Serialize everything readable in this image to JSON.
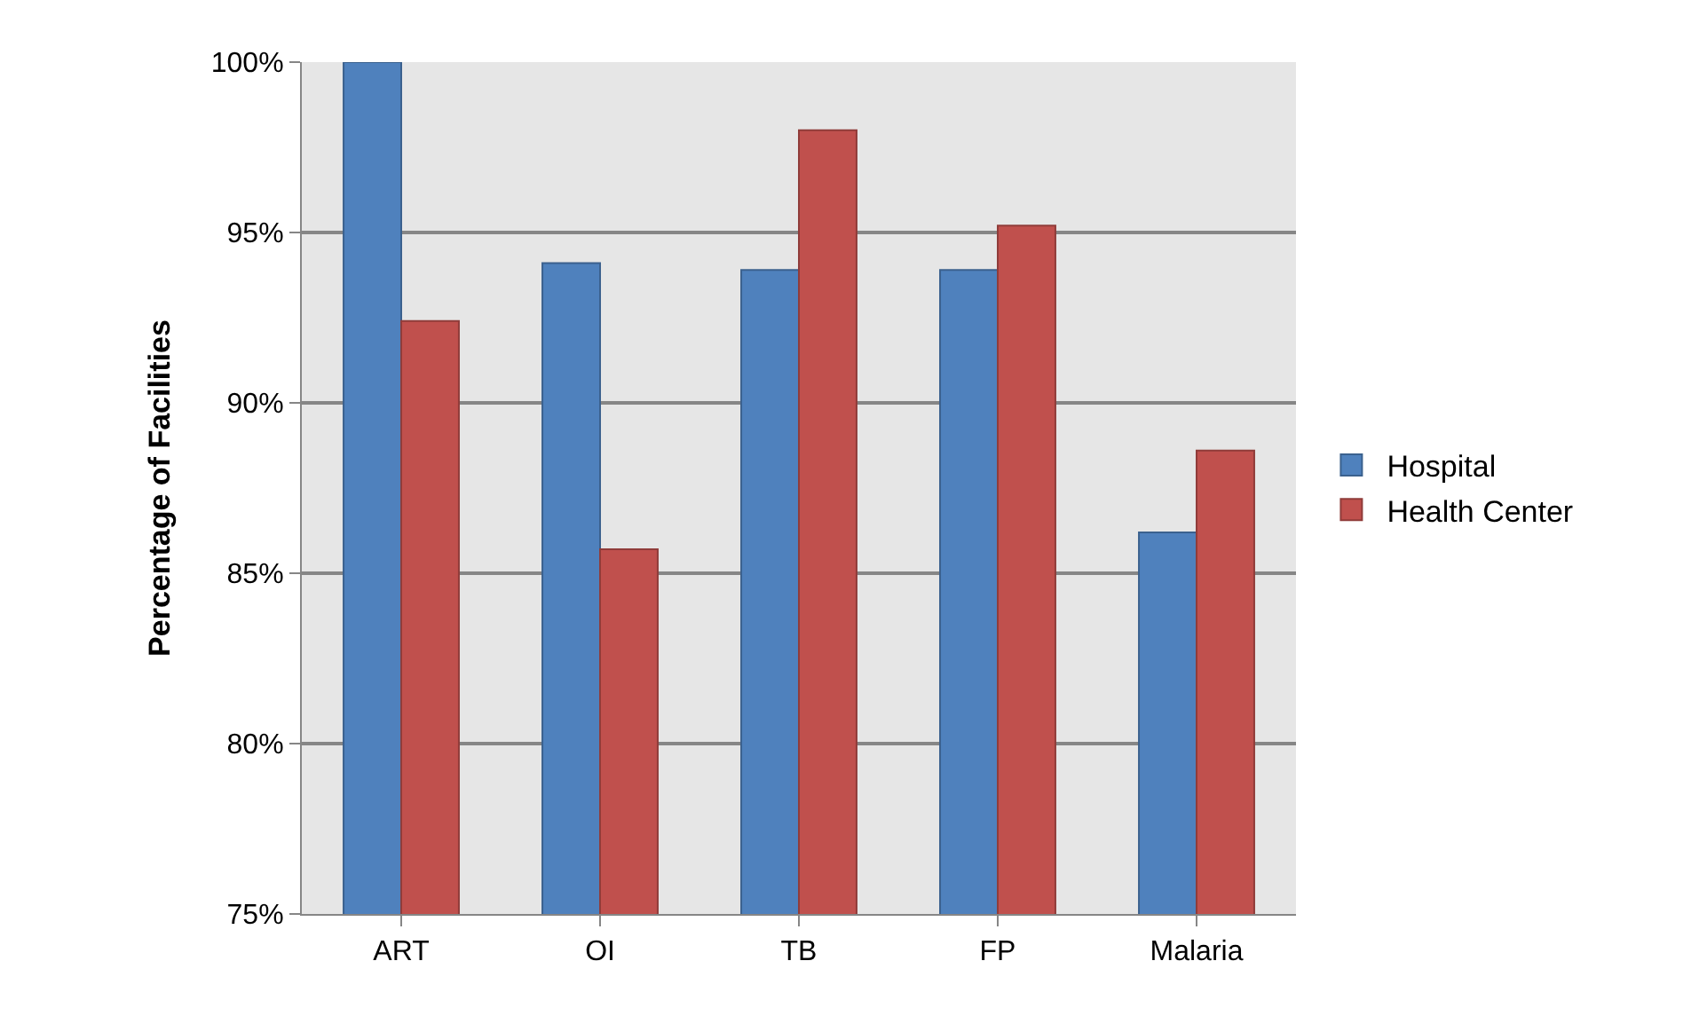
{
  "chart_data": {
    "type": "bar",
    "ylabel": "Percentage of Facilities",
    "categories": [
      "ART",
      "OI",
      "TB",
      "FP",
      "Malaria"
    ],
    "series": [
      {
        "name": "Hospital",
        "color": "#4f81bd",
        "values": [
          100,
          94.1,
          93.9,
          93.9,
          86.2
        ]
      },
      {
        "name": "Health Center",
        "color": "#c0504d",
        "values": [
          92.4,
          85.7,
          98,
          95.2,
          88.6
        ]
      }
    ],
    "ylim": [
      75,
      100
    ],
    "yticks": [
      {
        "value": 75,
        "label": "75%"
      },
      {
        "value": 80,
        "label": "80%"
      },
      {
        "value": 85,
        "label": "85%"
      },
      {
        "value": 90,
        "label": "90%"
      },
      {
        "value": 95,
        "label": "95%"
      },
      {
        "value": 100,
        "label": "100%"
      }
    ],
    "grid": "y",
    "legend": "right"
  }
}
